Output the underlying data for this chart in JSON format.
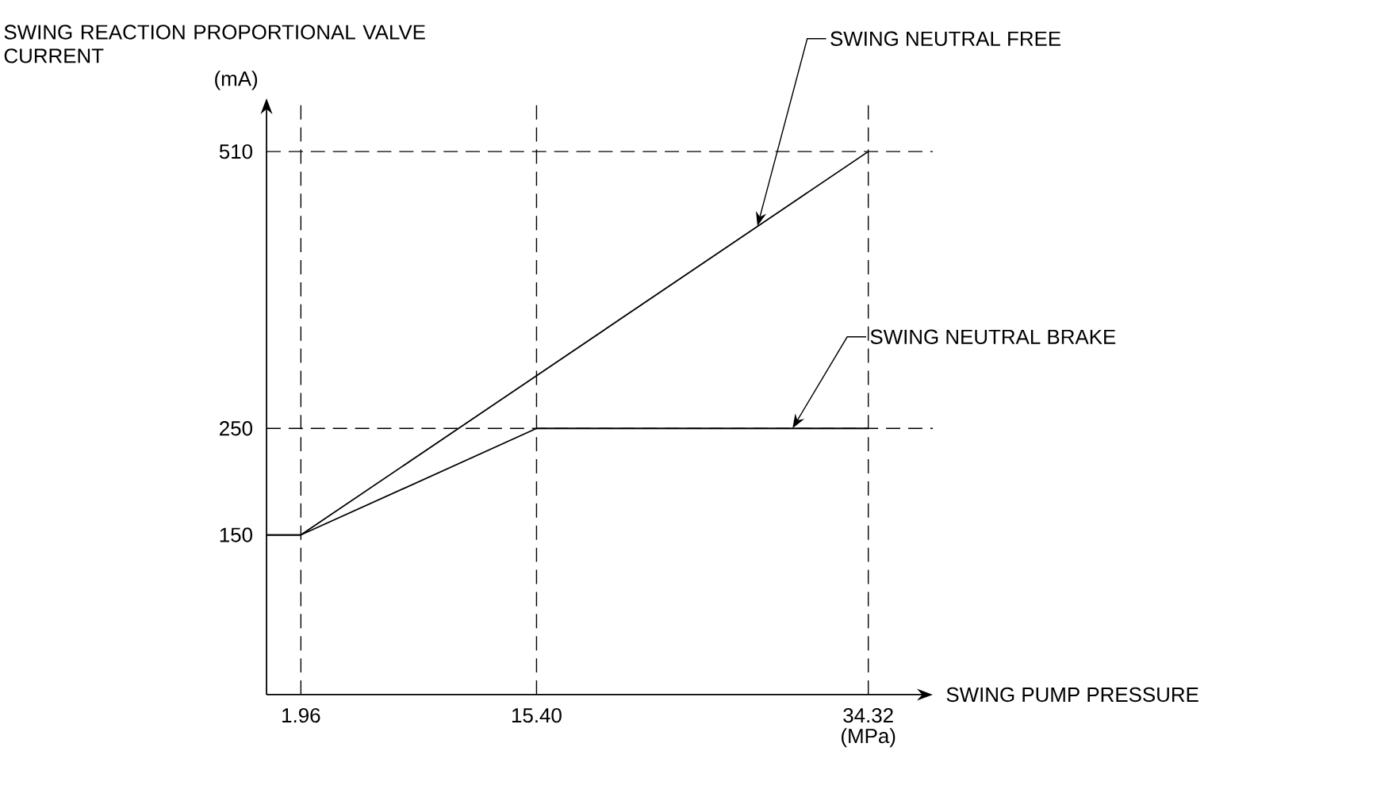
{
  "chart_data": {
    "type": "line",
    "xlabel": "SWING PUMP PRESSURE",
    "ylabel": "SWING REACTION PROPORTIONAL VALVE CURRENT",
    "annotations": [
      {
        "text": "SWING NEUTRAL FREE",
        "x": 28,
        "y": 440
      },
      {
        "text": "SWING NEUTRAL BRAKE",
        "x": 30,
        "y": 250
      },
      "(mA)",
      "(MPa)"
    ],
    "series": [
      {
        "color": "#000000",
        "x": [
          0,
          1.96,
          34.32
        ],
        "values": [
          150,
          150,
          510
        ]
      },
      {
        "color": "#000000",
        "x": [
          0,
          1.96,
          15.4,
          34.32
        ],
        "values": [
          150,
          150,
          250,
          250
        ]
      }
    ],
    "xlim": [
      0,
      38
    ],
    "ylim": [
      0,
      560
    ],
    "xticks": [
      1.96,
      {
        "value": 15.4,
        "label": "15.40"
      },
      34.32
    ],
    "yticks": [
      150,
      250,
      510
    ],
    "ref_lines": [
      {
        "axis": "y",
        "value": 510,
        "color": "#000000",
        "line_style": "dashed"
      },
      {
        "axis": "y",
        "value": 250,
        "color": "#000000",
        "line_style": "dashed"
      },
      {
        "axis": "x",
        "value": 1.96,
        "color": "#000000",
        "line_style": "dashed"
      },
      {
        "axis": "x",
        "value": 15.4,
        "color": "#000000",
        "line_style": "dashed"
      },
      {
        "axis": "x",
        "value": 34.32,
        "color": "#000000",
        "line_style": "dashed"
      }
    ]
  }
}
